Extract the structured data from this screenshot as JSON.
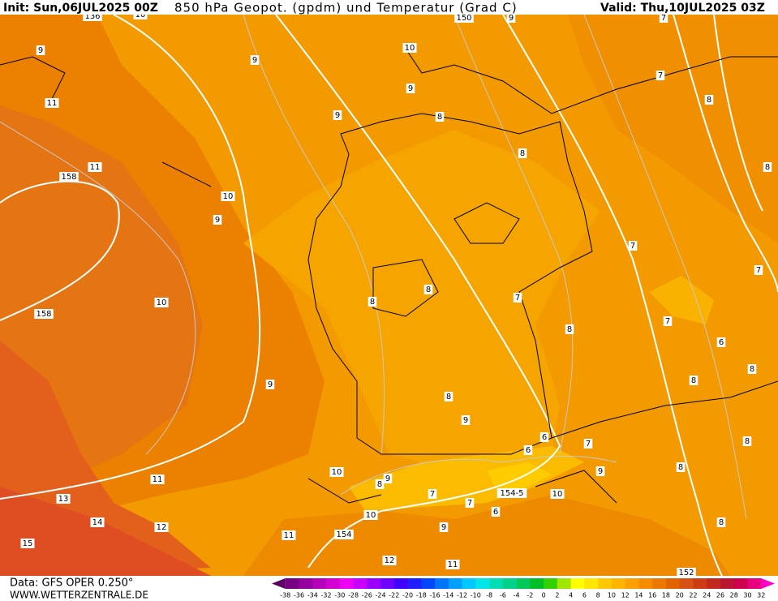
{
  "header": {
    "init": "Init: Sun,06JUL2025 00Z",
    "title": "850 hPa Geopot. (gpdm) und Temperatur (Grad C)",
    "valid": "Valid: Thu,10JUL2025 03Z"
  },
  "contour_labels": [
    "136",
    "10",
    "150",
    "9",
    "7",
    "9",
    "9",
    "10",
    "7",
    "11",
    "9",
    "8",
    "9",
    "8",
    "11",
    "8",
    "8",
    "158",
    "10",
    "9",
    "7",
    "7",
    "10",
    "8",
    "7",
    "158",
    "8",
    "7",
    "8",
    "6",
    "8",
    "9",
    "8",
    "8",
    "9",
    "6",
    "7",
    "6",
    "8",
    "10",
    "9",
    "8",
    "9",
    "8",
    "11",
    "7",
    "154-5",
    "10",
    "13",
    "7",
    "6",
    "10",
    "14",
    "12",
    "9",
    "11",
    "154",
    "8",
    "15",
    "12",
    "11",
    "152"
  ],
  "footer": {
    "data": "Data: GFS OPER 0.250°",
    "site": "WWW.WETTERZENTRALE.DE"
  },
  "colorbar": {
    "labels": [
      "-38",
      "-36",
      "-34",
      "-32",
      "-30",
      "-28",
      "-26",
      "-24",
      "-22",
      "-20",
      "-18",
      "-16",
      "-14",
      "-12",
      "-10",
      "-8",
      "-6",
      "-4",
      "-2",
      "0",
      "2",
      "4",
      "6",
      "8",
      "10",
      "12",
      "14",
      "16",
      "18",
      "20",
      "22",
      "24",
      "26",
      "28",
      "30",
      "32"
    ],
    "colors": [
      "#5a0064",
      "#780082",
      "#9600a0",
      "#b400b9",
      "#d200d2",
      "#f000f0",
      "#c800ff",
      "#9b00ff",
      "#6e00ff",
      "#4100ff",
      "#1e1eff",
      "#0046ff",
      "#0073ff",
      "#00a0ff",
      "#00c8ff",
      "#00e6e6",
      "#00dcb4",
      "#00d28c",
      "#00c85a",
      "#00be28",
      "#32d200",
      "#a0e600",
      "#ffff00",
      "#ffe600",
      "#ffc800",
      "#ffb400",
      "#ffa000",
      "#f58c00",
      "#eb7800",
      "#e16400",
      "#d75014",
      "#cd3c14",
      "#c3281e",
      "#b91432",
      "#cd0050",
      "#e6007d",
      "#ff00c8"
    ]
  }
}
